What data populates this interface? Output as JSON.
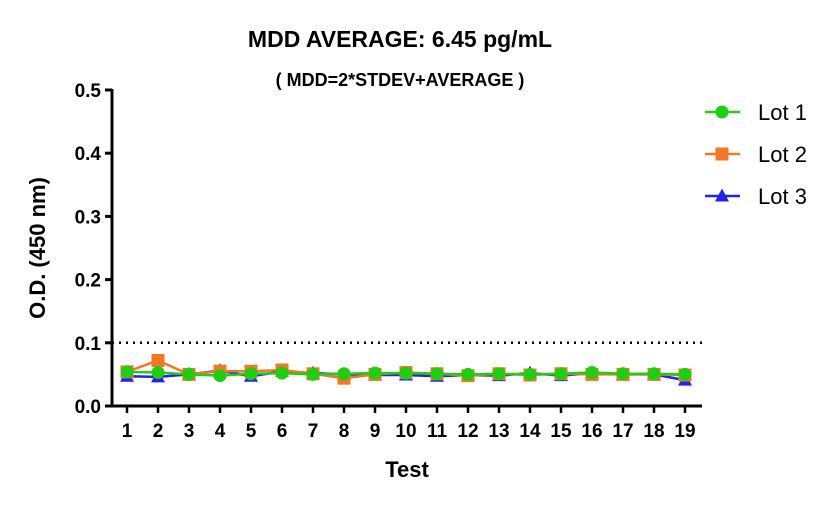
{
  "chart_data": {
    "type": "line",
    "title": "MDD AVERAGE:  6.45 pg/mL",
    "subtitle": "( MDD=2*STDEV+AVERAGE )",
    "xlabel": "Test",
    "ylabel": "O.D. (450 nm)",
    "x": [
      1,
      2,
      3,
      4,
      5,
      6,
      7,
      8,
      9,
      10,
      11,
      12,
      13,
      14,
      15,
      16,
      17,
      18,
      19
    ],
    "ylim": [
      0,
      0.5
    ],
    "yticks": [
      "0.0",
      "0.1",
      "0.2",
      "0.3",
      "0.4",
      "0.5"
    ],
    "threshold": 0.1,
    "grid": false,
    "legend_position": "right",
    "series": [
      {
        "name": "Lot 1",
        "marker": "circle",
        "color": "#22cc11",
        "values": [
          0.054,
          0.053,
          0.05,
          0.048,
          0.051,
          0.052,
          0.05,
          0.051,
          0.052,
          0.052,
          0.051,
          0.05,
          0.051,
          0.05,
          0.051,
          0.053,
          0.051,
          0.051,
          0.05
        ]
      },
      {
        "name": "Lot 2",
        "marker": "square",
        "color": "#f07828",
        "values": [
          0.054,
          0.072,
          0.05,
          0.055,
          0.055,
          0.057,
          0.051,
          0.044,
          0.05,
          0.053,
          0.051,
          0.048,
          0.051,
          0.049,
          0.051,
          0.05,
          0.05,
          0.05,
          0.049
        ]
      },
      {
        "name": "Lot 3",
        "marker": "triangle",
        "color": "#2222ee",
        "values": [
          0.047,
          0.046,
          0.05,
          0.056,
          0.047,
          0.055,
          0.052,
          0.05,
          0.049,
          0.049,
          0.047,
          0.049,
          0.048,
          0.052,
          0.048,
          0.052,
          0.05,
          0.05,
          0.041
        ]
      }
    ]
  }
}
